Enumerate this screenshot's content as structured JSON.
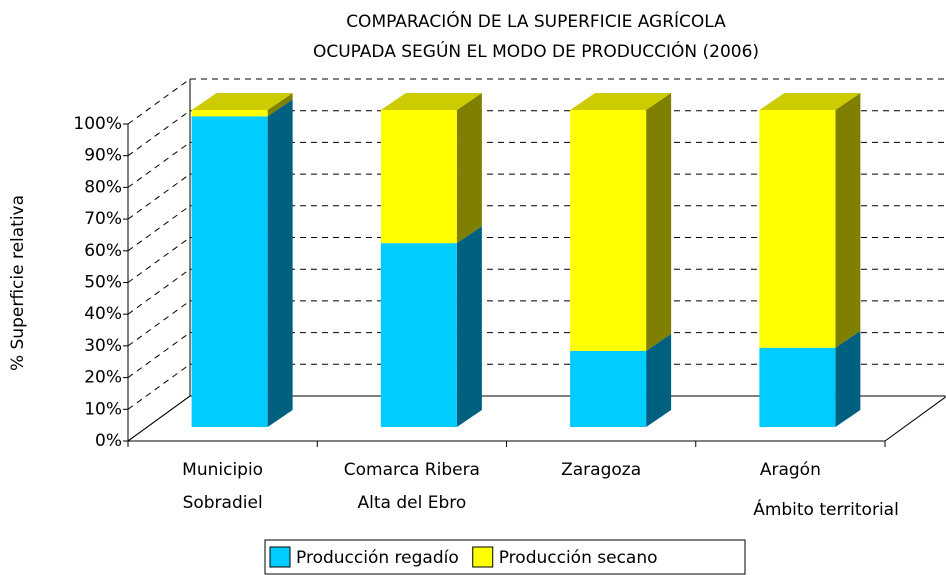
{
  "chart_data": {
    "type": "bar3d_stacked",
    "title": "COMPARACIÓN DE LA SUPERFICIE AGRÍCOLA\nOCUPADA SEGÚN EL MODO DE PRODUCCIÓN (2006)",
    "x_label": "Ámbito territorial",
    "y_label": "% Superficie relativa",
    "categories": [
      "Municipio\nSobradiel",
      "Comarca Ribera\nAlta del Ebro",
      "Zaragoza",
      "Aragón"
    ],
    "series": [
      {
        "name": "Producción regadío",
        "color": "#00ccff",
        "side_color": "#006080",
        "values": [
          98,
          58,
          24,
          25
        ]
      },
      {
        "name": "Producción secano",
        "color": "#ffff00",
        "side_color": "#808000",
        "values": [
          2,
          42,
          76,
          75
        ]
      }
    ],
    "ylim": [
      0,
      100
    ],
    "yticks": [
      {
        "value": 0,
        "label": "0%"
      },
      {
        "value": 10,
        "label": "10%"
      },
      {
        "value": 20,
        "label": "20%"
      },
      {
        "value": 30,
        "label": "30%"
      },
      {
        "value": 40,
        "label": "40%"
      },
      {
        "value": 50,
        "label": "50%"
      },
      {
        "value": 60,
        "label": "60%"
      },
      {
        "value": 70,
        "label": "70%"
      },
      {
        "value": 80,
        "label": "80%"
      },
      {
        "value": 90,
        "label": "90%"
      },
      {
        "value": 100,
        "label": "100%"
      }
    ],
    "grid": true,
    "legend": "bottom"
  }
}
